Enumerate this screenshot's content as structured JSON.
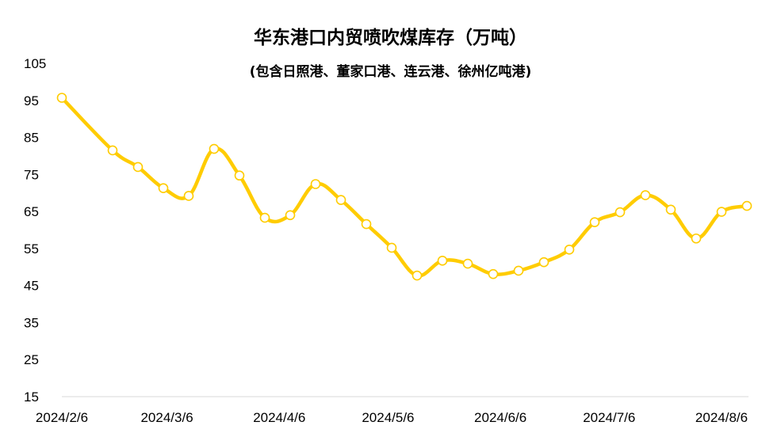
{
  "chart_data": {
    "type": "line",
    "title": "华东港口内贸喷吹煤库存（万吨）",
    "subtitle": "(包含日照港、董家口港、连云港、徐州亿吨港)",
    "xlabel": "",
    "ylabel": "",
    "ylim": [
      15,
      105
    ],
    "yticks": [
      15,
      25,
      35,
      45,
      55,
      65,
      75,
      85,
      95,
      105
    ],
    "xtick_labels": [
      "2024/2/6",
      "2024/3/6",
      "2024/4/6",
      "2024/5/6",
      "2024/6/6",
      "2024/7/6",
      "2024/8/6"
    ],
    "grid": false,
    "legend": "none",
    "series": [
      {
        "color": "#FFCC00",
        "x": [
          "2024/2/6",
          "2024/2/20",
          "2024/2/27",
          "2024/3/5",
          "2024/3/12",
          "2024/3/19",
          "2024/3/26",
          "2024/4/2",
          "2024/4/9",
          "2024/4/16",
          "2024/4/23",
          "2024/4/30",
          "2024/5/7",
          "2024/5/14",
          "2024/5/21",
          "2024/5/28",
          "2024/6/4",
          "2024/6/11",
          "2024/6/18",
          "2024/6/25",
          "2024/7/2",
          "2024/7/9",
          "2024/7/16",
          "2024/7/23",
          "2024/7/30",
          "2024/8/6",
          "2024/8/13"
        ],
        "values": [
          95.7,
          81.5,
          77.0,
          71.3,
          69.2,
          81.9,
          74.7,
          63.3,
          64.0,
          72.4,
          68.1,
          61.6,
          55.2,
          47.7,
          51.7,
          50.9,
          48.1,
          49.0,
          51.3,
          54.7,
          62.1,
          64.8,
          69.4,
          65.5,
          57.7,
          64.9,
          66.5
        ]
      }
    ]
  }
}
